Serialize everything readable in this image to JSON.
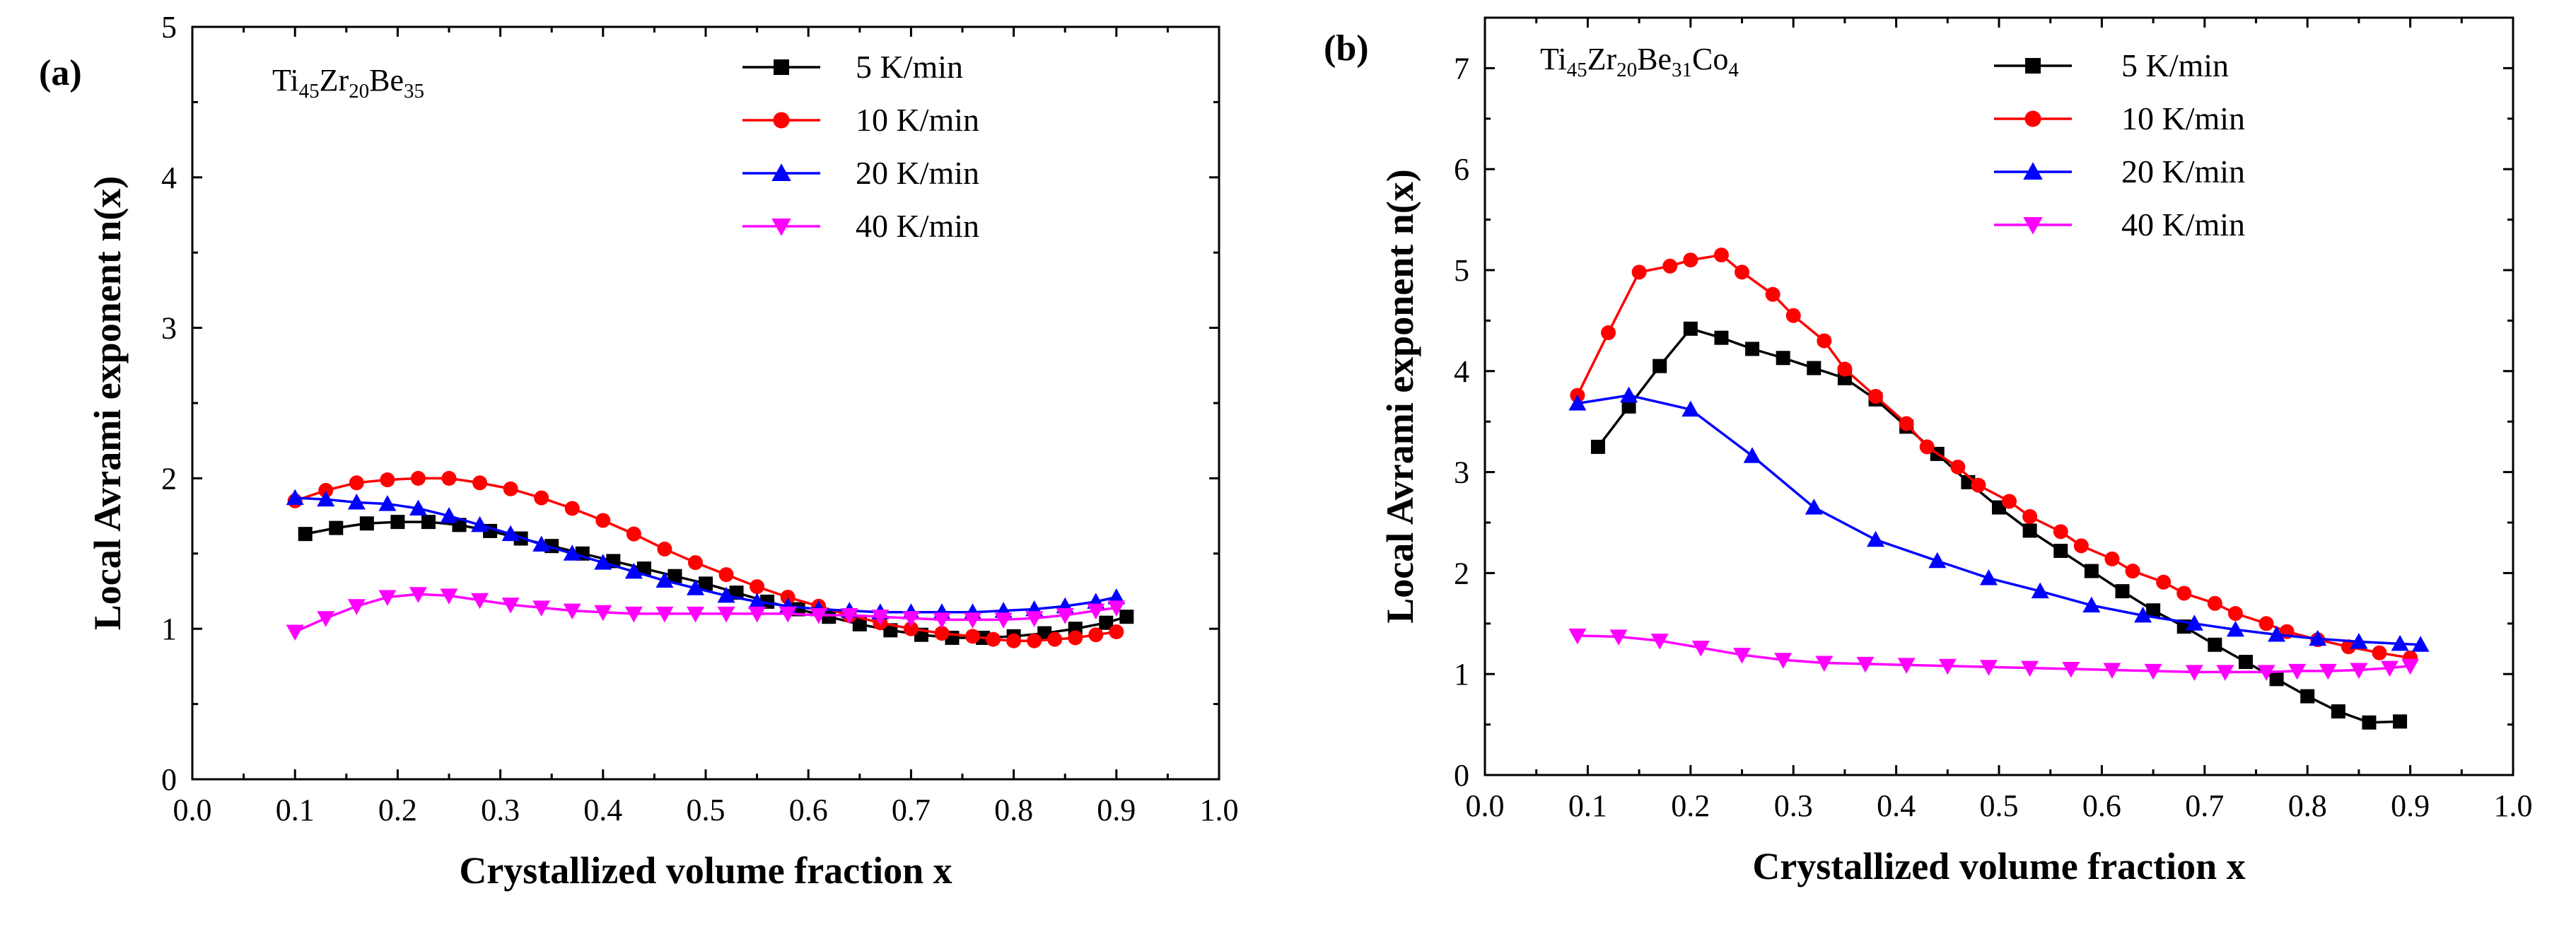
{
  "chart_data": [
    {
      "type": "line",
      "panel_label": "(a)",
      "composition": {
        "parts": [
          {
            "el": "Ti",
            "sub": "45"
          },
          {
            "el": "Zr",
            "sub": "20"
          },
          {
            "el": "Be",
            "sub": "35"
          }
        ]
      },
      "xlabel": "Crystallized volume fraction x",
      "ylabel": "Local Avrami exponent n(x)",
      "xlim": [
        0.0,
        1.0
      ],
      "ylim": [
        0,
        5
      ],
      "xticks": [
        "0.0",
        "0.1",
        "0.2",
        "0.3",
        "0.4",
        "0.5",
        "0.6",
        "0.7",
        "0.8",
        "0.9",
        "1.0"
      ],
      "yticks": [
        "0",
        "1",
        "2",
        "3",
        "4",
        "5"
      ],
      "legend_position": "top-right",
      "series": [
        {
          "name": "5 K/min",
          "color": "#000000",
          "marker": "square",
          "x": [
            0.11,
            0.14,
            0.17,
            0.2,
            0.23,
            0.26,
            0.29,
            0.32,
            0.35,
            0.38,
            0.41,
            0.44,
            0.47,
            0.5,
            0.53,
            0.56,
            0.59,
            0.62,
            0.65,
            0.68,
            0.71,
            0.74,
            0.77,
            0.8,
            0.83,
            0.86,
            0.89,
            0.91
          ],
          "values": [
            1.63,
            1.67,
            1.7,
            1.71,
            1.71,
            1.69,
            1.65,
            1.6,
            1.55,
            1.5,
            1.45,
            1.4,
            1.35,
            1.3,
            1.24,
            1.18,
            1.13,
            1.08,
            1.03,
            0.99,
            0.96,
            0.94,
            0.94,
            0.95,
            0.97,
            1.0,
            1.04,
            1.08
          ]
        },
        {
          "name": "10 K/min",
          "color": "#ff0000",
          "marker": "circle",
          "x": [
            0.1,
            0.13,
            0.16,
            0.19,
            0.22,
            0.25,
            0.28,
            0.31,
            0.34,
            0.37,
            0.4,
            0.43,
            0.46,
            0.49,
            0.52,
            0.55,
            0.58,
            0.61,
            0.64,
            0.67,
            0.7,
            0.73,
            0.76,
            0.78,
            0.8,
            0.82,
            0.84,
            0.86,
            0.88,
            0.9
          ],
          "values": [
            1.85,
            1.92,
            1.97,
            1.99,
            2.0,
            2.0,
            1.97,
            1.93,
            1.87,
            1.8,
            1.72,
            1.63,
            1.53,
            1.44,
            1.36,
            1.28,
            1.21,
            1.15,
            1.09,
            1.04,
            1.0,
            0.97,
            0.95,
            0.93,
            0.92,
            0.92,
            0.93,
            0.94,
            0.96,
            0.98
          ]
        },
        {
          "name": "20 K/min",
          "color": "#0000ff",
          "marker": "triangle-up",
          "x": [
            0.1,
            0.13,
            0.16,
            0.19,
            0.22,
            0.25,
            0.28,
            0.31,
            0.34,
            0.37,
            0.4,
            0.43,
            0.46,
            0.49,
            0.52,
            0.55,
            0.58,
            0.61,
            0.64,
            0.67,
            0.7,
            0.73,
            0.76,
            0.79,
            0.82,
            0.85,
            0.88,
            0.9
          ],
          "values": [
            1.87,
            1.86,
            1.84,
            1.83,
            1.8,
            1.75,
            1.69,
            1.63,
            1.56,
            1.5,
            1.44,
            1.38,
            1.32,
            1.27,
            1.22,
            1.18,
            1.15,
            1.13,
            1.12,
            1.11,
            1.11,
            1.11,
            1.11,
            1.12,
            1.13,
            1.15,
            1.18,
            1.21
          ]
        },
        {
          "name": "40 K/min",
          "color": "#ff00ff",
          "marker": "triangle-down",
          "x": [
            0.1,
            0.13,
            0.16,
            0.19,
            0.22,
            0.25,
            0.28,
            0.31,
            0.34,
            0.37,
            0.4,
            0.43,
            0.46,
            0.49,
            0.52,
            0.55,
            0.58,
            0.61,
            0.64,
            0.67,
            0.7,
            0.73,
            0.76,
            0.79,
            0.82,
            0.85,
            0.88,
            0.9
          ],
          "values": [
            0.98,
            1.07,
            1.15,
            1.21,
            1.23,
            1.22,
            1.19,
            1.16,
            1.14,
            1.12,
            1.11,
            1.1,
            1.1,
            1.1,
            1.1,
            1.1,
            1.1,
            1.09,
            1.09,
            1.08,
            1.07,
            1.06,
            1.06,
            1.06,
            1.07,
            1.09,
            1.12,
            1.14
          ]
        }
      ]
    },
    {
      "type": "line",
      "panel_label": "(b)",
      "composition": {
        "parts": [
          {
            "el": "Ti",
            "sub": "45"
          },
          {
            "el": "Zr",
            "sub": "20"
          },
          {
            "el": "Be",
            "sub": "31"
          },
          {
            "el": "Co",
            "sub": "4"
          }
        ]
      },
      "xlabel": "Crystallized volume fraction x",
      "ylabel": "Local Avrami exponent n(x)",
      "xlim": [
        0.0,
        1.0
      ],
      "ylim": [
        0,
        7.5
      ],
      "xticks": [
        "0.0",
        "0.1",
        "0.2",
        "0.3",
        "0.4",
        "0.5",
        "0.6",
        "0.7",
        "0.8",
        "0.9",
        "1.0"
      ],
      "yticks": [
        "0",
        "1",
        "2",
        "3",
        "4",
        "5",
        "6",
        "7"
      ],
      "legend_position": "top-right",
      "series": [
        {
          "name": "5 K/min",
          "color": "#000000",
          "marker": "square",
          "x": [
            0.11,
            0.14,
            0.17,
            0.2,
            0.23,
            0.26,
            0.29,
            0.32,
            0.35,
            0.38,
            0.41,
            0.44,
            0.47,
            0.5,
            0.53,
            0.56,
            0.59,
            0.62,
            0.65,
            0.68,
            0.71,
            0.74,
            0.77,
            0.8,
            0.83,
            0.86,
            0.89
          ],
          "values": [
            3.25,
            3.65,
            4.05,
            4.42,
            4.33,
            4.22,
            4.13,
            4.03,
            3.93,
            3.72,
            3.45,
            3.18,
            2.9,
            2.65,
            2.42,
            2.22,
            2.02,
            1.82,
            1.63,
            1.47,
            1.29,
            1.12,
            0.95,
            0.78,
            0.63,
            0.52,
            0.53
          ]
        },
        {
          "name": "10 K/min",
          "color": "#ff0000",
          "marker": "circle",
          "x": [
            0.09,
            0.12,
            0.15,
            0.18,
            0.2,
            0.23,
            0.25,
            0.28,
            0.3,
            0.33,
            0.35,
            0.38,
            0.41,
            0.43,
            0.46,
            0.48,
            0.51,
            0.53,
            0.56,
            0.58,
            0.61,
            0.63,
            0.66,
            0.68,
            0.71,
            0.73,
            0.76,
            0.78,
            0.81,
            0.84,
            0.87,
            0.9
          ],
          "values": [
            3.76,
            4.38,
            4.98,
            5.04,
            5.1,
            5.15,
            4.98,
            4.76,
            4.55,
            4.3,
            4.02,
            3.75,
            3.48,
            3.25,
            3.05,
            2.87,
            2.71,
            2.56,
            2.41,
            2.27,
            2.14,
            2.02,
            1.91,
            1.8,
            1.7,
            1.6,
            1.5,
            1.42,
            1.34,
            1.27,
            1.21,
            1.16
          ]
        },
        {
          "name": "20 K/min",
          "color": "#0000ff",
          "marker": "triangle-up",
          "x": [
            0.09,
            0.14,
            0.2,
            0.26,
            0.32,
            0.38,
            0.44,
            0.49,
            0.54,
            0.59,
            0.64,
            0.69,
            0.73,
            0.77,
            0.81,
            0.85,
            0.89,
            0.91
          ],
          "values": [
            3.68,
            3.76,
            3.62,
            3.16,
            2.65,
            2.33,
            2.12,
            1.95,
            1.82,
            1.68,
            1.58,
            1.5,
            1.44,
            1.39,
            1.35,
            1.32,
            1.3,
            1.29
          ]
        },
        {
          "name": "40 K/min",
          "color": "#ff00ff",
          "marker": "triangle-down",
          "x": [
            0.09,
            0.13,
            0.17,
            0.21,
            0.25,
            0.29,
            0.33,
            0.37,
            0.41,
            0.45,
            0.49,
            0.53,
            0.57,
            0.61,
            0.65,
            0.69,
            0.72,
            0.76,
            0.79,
            0.82,
            0.85,
            0.88,
            0.9
          ],
          "values": [
            1.38,
            1.37,
            1.33,
            1.26,
            1.19,
            1.14,
            1.11,
            1.1,
            1.09,
            1.08,
            1.07,
            1.06,
            1.05,
            1.04,
            1.03,
            1.02,
            1.02,
            1.02,
            1.03,
            1.03,
            1.04,
            1.06,
            1.08
          ]
        }
      ]
    }
  ]
}
